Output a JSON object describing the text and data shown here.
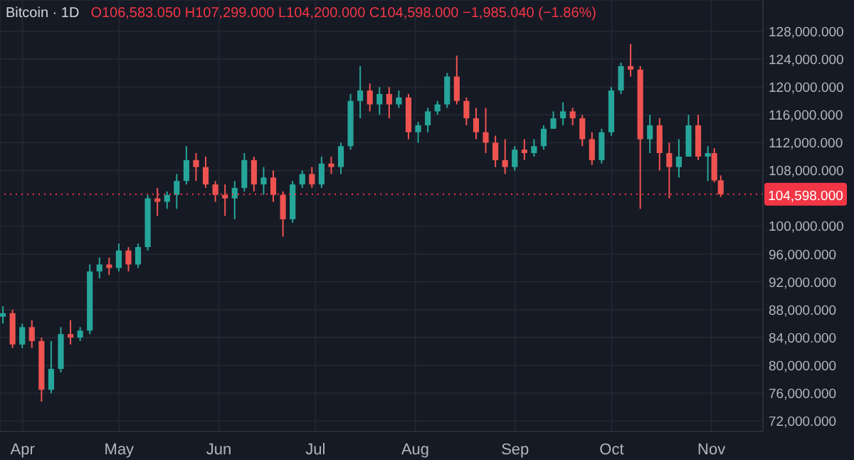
{
  "chart_data": {
    "type": "candlestick",
    "title": "Bitcoin · 1D",
    "subtitle": "O106,583.050 H107,299.000 L104,200.000 C104,598.000 −1,985.040 (−1.86%)",
    "x": [
      "--03-26",
      "--03-29",
      "--04-01",
      "--04-04",
      "--04-07",
      "--04-10",
      "--04-13",
      "--04-16",
      "--04-19",
      "--04-22",
      "--04-25",
      "--04-28",
      "--05-01",
      "--05-04",
      "--05-07",
      "--05-10",
      "--05-13",
      "--05-16",
      "--05-19",
      "--05-22",
      "--05-25",
      "--05-28",
      "--05-31",
      "--06-03",
      "--06-06",
      "--06-09",
      "--06-12",
      "--06-15",
      "--06-18",
      "--06-21",
      "--06-24",
      "--06-27",
      "--06-30",
      "--07-03",
      "--07-06",
      "--07-09",
      "--07-12",
      "--07-15",
      "--07-18",
      "--07-21",
      "--07-24",
      "--07-27",
      "--07-30",
      "--08-02",
      "--08-05",
      "--08-08",
      "--08-11",
      "--08-14",
      "--08-17",
      "--08-20",
      "--08-23",
      "--08-26",
      "--08-29",
      "--09-01",
      "--09-04",
      "--09-07",
      "--09-10",
      "--09-13",
      "--09-16",
      "--09-19",
      "--09-22",
      "--09-25",
      "--09-28",
      "--10-01",
      "--10-04",
      "--10-07",
      "--10-10",
      "--10-13",
      "--10-16",
      "--10-19",
      "--10-22",
      "--10-25",
      "--10-28",
      "--10-31",
      "--11-02",
      "--11-04"
    ],
    "ohlc": [
      [
        87000,
        88500,
        86000,
        87500
      ],
      [
        87500,
        88000,
        82500,
        83000
      ],
      [
        83000,
        86000,
        82500,
        85500
      ],
      [
        85500,
        86500,
        82500,
        83500
      ],
      [
        83500,
        84000,
        74800,
        76500
      ],
      [
        76500,
        83500,
        76000,
        79500
      ],
      [
        79500,
        85500,
        79000,
        84500
      ],
      [
        84500,
        86500,
        83000,
        84000
      ],
      [
        84000,
        85500,
        83500,
        85000
      ],
      [
        85000,
        94500,
        84500,
        93500
      ],
      [
        93500,
        95500,
        92500,
        94500
      ],
      [
        94500,
        95500,
        93000,
        94000
      ],
      [
        94000,
        97500,
        93500,
        96500
      ],
      [
        96500,
        97000,
        93500,
        94500
      ],
      [
        94500,
        97500,
        94000,
        97000
      ],
      [
        97000,
        104500,
        96500,
        104000
      ],
      [
        104000,
        105500,
        101500,
        103500
      ],
      [
        103500,
        105000,
        102500,
        104500
      ],
      [
        104500,
        107500,
        102500,
        106500
      ],
      [
        106500,
        111500,
        106000,
        109500
      ],
      [
        109500,
        110500,
        106500,
        108500
      ],
      [
        108500,
        110000,
        105500,
        106000
      ],
      [
        106000,
        106500,
        103500,
        104500
      ],
      [
        104500,
        106000,
        101500,
        104000
      ],
      [
        104000,
        106500,
        101000,
        105500
      ],
      [
        105500,
        110500,
        105000,
        109500
      ],
      [
        109500,
        110000,
        105000,
        106000
      ],
      [
        106000,
        108500,
        104500,
        107000
      ],
      [
        107000,
        108000,
        103500,
        104500
      ],
      [
        104500,
        105000,
        98500,
        101000
      ],
      [
        101000,
        106500,
        100500,
        106000
      ],
      [
        106000,
        108000,
        105500,
        107500
      ],
      [
        107500,
        108500,
        105500,
        106000
      ],
      [
        106000,
        110000,
        105500,
        109000
      ],
      [
        109000,
        110000,
        107500,
        108500
      ],
      [
        108500,
        112000,
        107500,
        111500
      ],
      [
        111500,
        119000,
        111000,
        118000
      ],
      [
        118000,
        123000,
        115500,
        119500
      ],
      [
        119500,
        120500,
        116500,
        117500
      ],
      [
        117500,
        120000,
        116000,
        119000
      ],
      [
        119000,
        120000,
        115500,
        117500
      ],
      [
        117500,
        119500,
        117000,
        118500
      ],
      [
        118500,
        119000,
        112500,
        113500
      ],
      [
        113500,
        115000,
        112000,
        114500
      ],
      [
        114500,
        117000,
        113500,
        116500
      ],
      [
        116500,
        118000,
        116000,
        117500
      ],
      [
        117500,
        122000,
        117000,
        121500
      ],
      [
        121500,
        124500,
        117500,
        118000
      ],
      [
        118000,
        118500,
        114500,
        115500
      ],
      [
        115500,
        117000,
        112500,
        113500
      ],
      [
        113500,
        117000,
        110500,
        112000
      ],
      [
        112000,
        113000,
        108500,
        109500
      ],
      [
        109500,
        112500,
        107500,
        108500
      ],
      [
        108500,
        111500,
        108000,
        111000
      ],
      [
        111000,
        112500,
        109500,
        110500
      ],
      [
        110500,
        112500,
        110000,
        111500
      ],
      [
        111500,
        114500,
        111000,
        114000
      ],
      [
        114000,
        116500,
        114000,
        115500
      ],
      [
        115500,
        117800,
        114500,
        116500
      ],
      [
        116500,
        117000,
        114500,
        115500
      ],
      [
        115500,
        116000,
        111500,
        112500
      ],
      [
        112500,
        113500,
        108800,
        109500
      ],
      [
        109500,
        114000,
        109000,
        113500
      ],
      [
        113500,
        120000,
        113000,
        119500
      ],
      [
        119500,
        123500,
        119000,
        123000
      ],
      [
        123000,
        126200,
        121500,
        122500
      ],
      [
        122500,
        123000,
        102500,
        112500
      ],
      [
        112500,
        116000,
        110500,
        114500
      ],
      [
        114500,
        115500,
        108000,
        110500
      ],
      [
        110500,
        112000,
        104000,
        108500
      ],
      [
        108500,
        112500,
        107000,
        110000
      ],
      [
        110000,
        116000,
        110000,
        114500
      ],
      [
        114500,
        116000,
        109500,
        110000
      ],
      [
        110000,
        111500,
        106500,
        110500
      ],
      [
        110500,
        111200,
        106300,
        106583
      ],
      [
        106583,
        107299,
        104200,
        104598
      ]
    ],
    "colors": [
      "#26a69a",
      "#ef5350",
      "#26a69a",
      "#ef5350",
      "#ef5350",
      "#26a69a",
      "#26a69a",
      "#ef5350",
      "#26a69a",
      "#26a69a",
      "#26a69a",
      "#ef5350",
      "#26a69a",
      "#ef5350",
      "#26a69a",
      "#26a69a",
      "#ef5350",
      "#26a69a",
      "#26a69a",
      "#26a69a",
      "#ef5350",
      "#ef5350",
      "#ef5350",
      "#ef5350",
      "#26a69a",
      "#26a69a",
      "#ef5350",
      "#26a69a",
      "#ef5350",
      "#ef5350",
      "#26a69a",
      "#26a69a",
      "#ef5350",
      "#26a69a",
      "#ef5350",
      "#26a69a",
      "#26a69a",
      "#26a69a",
      "#ef5350",
      "#26a69a",
      "#ef5350",
      "#26a69a",
      "#ef5350",
      "#26a69a",
      "#26a69a",
      "#26a69a",
      "#26a69a",
      "#ef5350",
      "#ef5350",
      "#ef5350",
      "#ef5350",
      "#ef5350",
      "#ef5350",
      "#26a69a",
      "#ef5350",
      "#26a69a",
      "#26a69a",
      "#26a69a",
      "#26a69a",
      "#ef5350",
      "#ef5350",
      "#ef5350",
      "#26a69a",
      "#26a69a",
      "#26a69a",
      "#ef5350",
      "#ef5350",
      "#26a69a",
      "#ef5350",
      "#ef5350",
      "#26a69a",
      "#26a69a",
      "#ef5350",
      "#26a69a",
      "#ef5350",
      "#ef5350"
    ],
    "xlim": [
      "--03-25",
      "--11-17"
    ],
    "xticks": [
      {
        "value": "--04-01",
        "label": "Apr"
      },
      {
        "value": "--05-01",
        "label": "May"
      },
      {
        "value": "--06-01",
        "label": "Jun"
      },
      {
        "value": "--07-01",
        "label": "Jul"
      },
      {
        "value": "--08-01",
        "label": "Aug"
      },
      {
        "value": "--09-01",
        "label": "Sep"
      },
      {
        "value": "--10-01",
        "label": "Oct"
      },
      {
        "value": "--11-01",
        "label": "Nov"
      }
    ],
    "ylim": [
      70500,
      132500
    ],
    "yticks": [
      {
        "value": 72000,
        "label": "72,000.000"
      },
      {
        "value": 76000,
        "label": "76,000.000"
      },
      {
        "value": 80000,
        "label": "80,000.000"
      },
      {
        "value": 84000,
        "label": "84,000.000"
      },
      {
        "value": 88000,
        "label": "88,000.000"
      },
      {
        "value": 92000,
        "label": "92,000.000"
      },
      {
        "value": 96000,
        "label": "96,000.000"
      },
      {
        "value": 100000,
        "label": "100,000.000"
      },
      {
        "value": 108000,
        "label": "108,000.000"
      },
      {
        "value": 112000,
        "label": "112,000.000"
      },
      {
        "value": 116000,
        "label": "116,000.000"
      },
      {
        "value": 120000,
        "label": "120,000.000"
      },
      {
        "value": 124000,
        "label": "124,000.000"
      },
      {
        "value": 128000,
        "label": "128,000.000"
      }
    ],
    "ref_lines": [
      {
        "axis": "y",
        "value": 104598,
        "label": "104,598.000",
        "color": "#f23645",
        "line_style": "dotted"
      }
    ],
    "grid": true
  }
}
